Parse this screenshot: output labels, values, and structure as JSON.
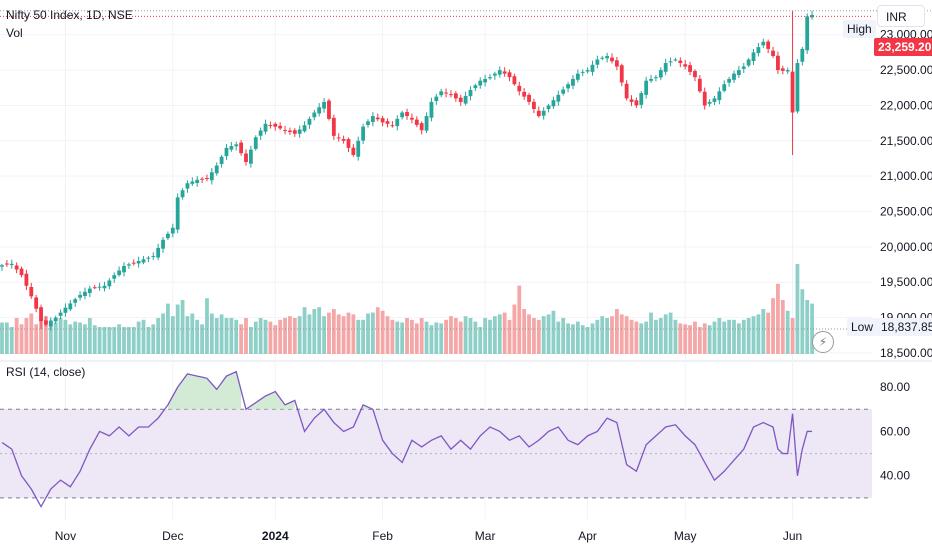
{
  "header": {
    "title": "Nifty 50 Index, 1D, NSE",
    "volume_label": "Vol",
    "rsi_label": "RSI (14, close)",
    "currency": "INR"
  },
  "price_tags": {
    "high_label": "High",
    "current": "23,259.20",
    "low_label": "Low",
    "low_value": "18,837.85"
  },
  "colors": {
    "up": "#26a69a",
    "down": "#f23645",
    "up_volume": "#8ed0c7",
    "down_volume": "#f5a6a6",
    "rsi_line": "#7e57c2",
    "rsi_band": "#ede7f6",
    "grid": "#f0f3fa",
    "axis_text": "#131722"
  },
  "chart_data": [
    {
      "type": "candlestick",
      "title": "Nifty 50 Index, 1D, NSE",
      "y_ticks": [
        "18,500.00",
        "19,000.00",
        "19,500.00",
        "20,000.00",
        "20,500.00",
        "21,000.00",
        "21,500.00",
        "22,000.00",
        "22,500.00",
        "23,000.00"
      ],
      "ylim": [
        18400,
        23350
      ],
      "x_ticks": [
        "Nov",
        "Dec",
        "2024",
        "Feb",
        "Mar",
        "Apr",
        "May",
        "Jun"
      ],
      "x_tick_index": [
        13,
        35,
        56,
        78,
        99,
        120,
        140,
        162
      ],
      "close_anchors": [
        [
          0,
          19740
        ],
        [
          2,
          19760
        ],
        [
          4,
          19600
        ],
        [
          6,
          19300
        ],
        [
          8,
          18950
        ],
        [
          9,
          18900
        ],
        [
          11,
          19000
        ],
        [
          13,
          19140
        ],
        [
          16,
          19320
        ],
        [
          18,
          19410
        ],
        [
          21,
          19450
        ],
        [
          23,
          19600
        ],
        [
          25,
          19730
        ],
        [
          28,
          19800
        ],
        [
          31,
          19870
        ],
        [
          33,
          20100
        ],
        [
          35,
          20270
        ],
        [
          36,
          20700
        ],
        [
          38,
          20900
        ],
        [
          40,
          20950
        ],
        [
          42,
          20960
        ],
        [
          44,
          21150
        ],
        [
          46,
          21400
        ],
        [
          48,
          21450
        ],
        [
          50,
          21200
        ],
        [
          52,
          21550
        ],
        [
          54,
          21740
        ],
        [
          56,
          21700
        ],
        [
          58,
          21650
        ],
        [
          60,
          21600
        ],
        [
          62,
          21720
        ],
        [
          64,
          21900
        ],
        [
          66,
          22050
        ],
        [
          68,
          21570
        ],
        [
          70,
          21500
        ],
        [
          72,
          21300
        ],
        [
          74,
          21700
        ],
        [
          76,
          21850
        ],
        [
          78,
          21760
        ],
        [
          80,
          21720
        ],
        [
          82,
          21900
        ],
        [
          84,
          21800
        ],
        [
          86,
          21650
        ],
        [
          88,
          22050
        ],
        [
          90,
          22200
        ],
        [
          92,
          22150
        ],
        [
          94,
          22050
        ],
        [
          96,
          22220
        ],
        [
          98,
          22350
        ],
        [
          100,
          22400
        ],
        [
          102,
          22500
        ],
        [
          104,
          22400
        ],
        [
          106,
          22200
        ],
        [
          108,
          22050
        ],
        [
          110,
          21850
        ],
        [
          112,
          22000
        ],
        [
          114,
          22150
        ],
        [
          116,
          22300
        ],
        [
          118,
          22450
        ],
        [
          120,
          22500
        ],
        [
          122,
          22650
        ],
        [
          124,
          22700
        ],
        [
          126,
          22550
        ],
        [
          128,
          22100
        ],
        [
          130,
          22000
        ],
        [
          132,
          22350
        ],
        [
          134,
          22400
        ],
        [
          136,
          22600
        ],
        [
          138,
          22650
        ],
        [
          140,
          22550
        ],
        [
          142,
          22400
        ],
        [
          144,
          22000
        ],
        [
          146,
          22100
        ],
        [
          148,
          22300
        ],
        [
          150,
          22450
        ],
        [
          152,
          22550
        ],
        [
          154,
          22750
        ],
        [
          156,
          22900
        ],
        [
          158,
          22700
        ],
        [
          159,
          22500
        ],
        [
          160,
          22490
        ],
        [
          161,
          22500
        ],
        [
          162,
          21900
        ],
        [
          163,
          22600
        ],
        [
          164,
          22800
        ],
        [
          165,
          23259
        ]
      ],
      "volume_relative": [
        0.35,
        0.35,
        0.3,
        0.4,
        0.33,
        0.4,
        0.45,
        0.33,
        0.4,
        0.42,
        0.38,
        0.35,
        0.4,
        0.38,
        0.33,
        0.36,
        0.35,
        0.33,
        0.4,
        0.32,
        0.3,
        0.3,
        0.3,
        0.3,
        0.33,
        0.3,
        0.3,
        0.3,
        0.36,
        0.38,
        0.3,
        0.33,
        0.4,
        0.45,
        0.56,
        0.42,
        0.55,
        0.6,
        0.42,
        0.45,
        0.38,
        0.33,
        0.62,
        0.45,
        0.4,
        0.44,
        0.4,
        0.4,
        0.38,
        0.33,
        0.4,
        0.3,
        0.36,
        0.4,
        0.38,
        0.36,
        0.32,
        0.38,
        0.4,
        0.42,
        0.4,
        0.42,
        0.52,
        0.44,
        0.5,
        0.52,
        0.42,
        0.46,
        0.5,
        0.44,
        0.42,
        0.46,
        0.44,
        0.38,
        0.38,
        0.45,
        0.46,
        0.52,
        0.48,
        0.42,
        0.38,
        0.36,
        0.35,
        0.4,
        0.38,
        0.34,
        0.4,
        0.36,
        0.32,
        0.35,
        0.34,
        0.38,
        0.42,
        0.4,
        0.36,
        0.42,
        0.4,
        0.36,
        0.3,
        0.4,
        0.38,
        0.42,
        0.44,
        0.46,
        0.38,
        0.55,
        0.76,
        0.5,
        0.44,
        0.4,
        0.38,
        0.42,
        0.44,
        0.48,
        0.36,
        0.4,
        0.34,
        0.33,
        0.36,
        0.32,
        0.3,
        0.34,
        0.38,
        0.42,
        0.4,
        0.42,
        0.5,
        0.44,
        0.42,
        0.38,
        0.36,
        0.34,
        0.36,
        0.46,
        0.38,
        0.4,
        0.44,
        0.46,
        0.38,
        0.34,
        0.33,
        0.32,
        0.36,
        0.3,
        0.34,
        0.32,
        0.36,
        0.4,
        0.36,
        0.38,
        0.38,
        0.34,
        0.38,
        0.4,
        0.42,
        0.44,
        0.5,
        0.46,
        0.62,
        0.78,
        0.6,
        0.48,
        0.4,
        1.0,
        0.72,
        0.6,
        0.56
      ],
      "low_value": 18837.85,
      "high_value": 23338.7,
      "current_value": 23259.2
    },
    {
      "type": "line",
      "title": "RSI (14, close)",
      "y_ticks": [
        "40.00",
        "60.00",
        "80.00"
      ],
      "ylim": [
        20,
        90
      ],
      "band": [
        30,
        70
      ],
      "midline": 50,
      "rsi_anchors": [
        [
          0,
          55
        ],
        [
          2,
          52
        ],
        [
          4,
          40
        ],
        [
          6,
          34
        ],
        [
          8,
          26
        ],
        [
          10,
          34
        ],
        [
          12,
          38
        ],
        [
          14,
          35
        ],
        [
          16,
          42
        ],
        [
          18,
          52
        ],
        [
          20,
          60
        ],
        [
          22,
          58
        ],
        [
          24,
          62
        ],
        [
          26,
          58
        ],
        [
          28,
          62
        ],
        [
          30,
          62
        ],
        [
          32,
          66
        ],
        [
          34,
          72
        ],
        [
          36,
          80
        ],
        [
          38,
          86
        ],
        [
          40,
          85
        ],
        [
          42,
          84
        ],
        [
          44,
          79
        ],
        [
          46,
          85
        ],
        [
          48,
          87
        ],
        [
          50,
          70
        ],
        [
          52,
          73
        ],
        [
          54,
          76
        ],
        [
          56,
          78
        ],
        [
          58,
          72
        ],
        [
          60,
          74
        ],
        [
          62,
          60
        ],
        [
          64,
          66
        ],
        [
          66,
          70
        ],
        [
          68,
          64
        ],
        [
          70,
          60
        ],
        [
          72,
          62
        ],
        [
          74,
          72
        ],
        [
          76,
          70
        ],
        [
          78,
          56
        ],
        [
          80,
          50
        ],
        [
          82,
          46
        ],
        [
          84,
          56
        ],
        [
          86,
          53
        ],
        [
          88,
          56
        ],
        [
          90,
          58
        ],
        [
          92,
          52
        ],
        [
          94,
          56
        ],
        [
          96,
          52
        ],
        [
          98,
          58
        ],
        [
          100,
          62
        ],
        [
          102,
          60
        ],
        [
          104,
          56
        ],
        [
          106,
          58
        ],
        [
          108,
          53
        ],
        [
          110,
          56
        ],
        [
          112,
          60
        ],
        [
          114,
          62
        ],
        [
          116,
          56
        ],
        [
          118,
          54
        ],
        [
          120,
          58
        ],
        [
          122,
          60
        ],
        [
          124,
          66
        ],
        [
          126,
          64
        ],
        [
          128,
          45
        ],
        [
          130,
          42
        ],
        [
          132,
          54
        ],
        [
          134,
          58
        ],
        [
          136,
          62
        ],
        [
          138,
          63
        ],
        [
          140,
          58
        ],
        [
          142,
          54
        ],
        [
          144,
          46
        ],
        [
          146,
          38
        ],
        [
          148,
          42
        ],
        [
          150,
          47
        ],
        [
          152,
          52
        ],
        [
          154,
          62
        ],
        [
          156,
          64
        ],
        [
          158,
          62
        ],
        [
          159,
          52
        ],
        [
          160,
          50
        ],
        [
          161,
          50
        ],
        [
          162,
          68
        ],
        [
          163,
          40
        ],
        [
          164,
          52
        ],
        [
          165,
          60
        ]
      ]
    }
  ]
}
